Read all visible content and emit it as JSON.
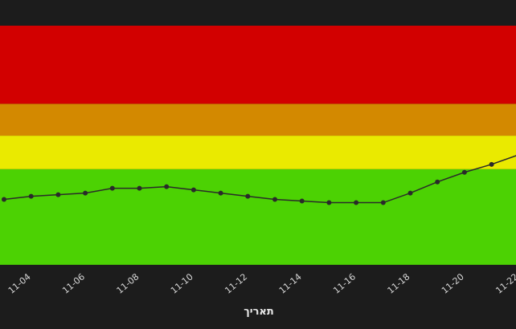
{
  "chart_data": {
    "type": "line",
    "x_label": "תאריך",
    "categories": [
      null,
      "11-04",
      null,
      "11-06",
      null,
      "11-08",
      null,
      "11-10",
      null,
      "11-12",
      null,
      "11-14",
      null,
      "11-16",
      null,
      "11-18",
      null,
      "11-20",
      null,
      "11-22"
    ],
    "values": [
      41,
      43,
      44,
      45,
      48,
      48,
      49,
      47,
      45,
      43,
      41,
      40,
      39,
      39,
      39,
      45,
      52,
      58,
      63,
      69
    ],
    "color": "#2a2a2a",
    "ylim": [
      0,
      150
    ],
    "bands": [
      {
        "from": 0,
        "to": 60,
        "color": "#4cd203"
      },
      {
        "from": 60,
        "to": 81,
        "color": "#eaea00"
      },
      {
        "from": 81,
        "to": 101,
        "color": "#d38900"
      },
      {
        "from": 101,
        "to": 150,
        "color": "#d20000"
      }
    ]
  }
}
